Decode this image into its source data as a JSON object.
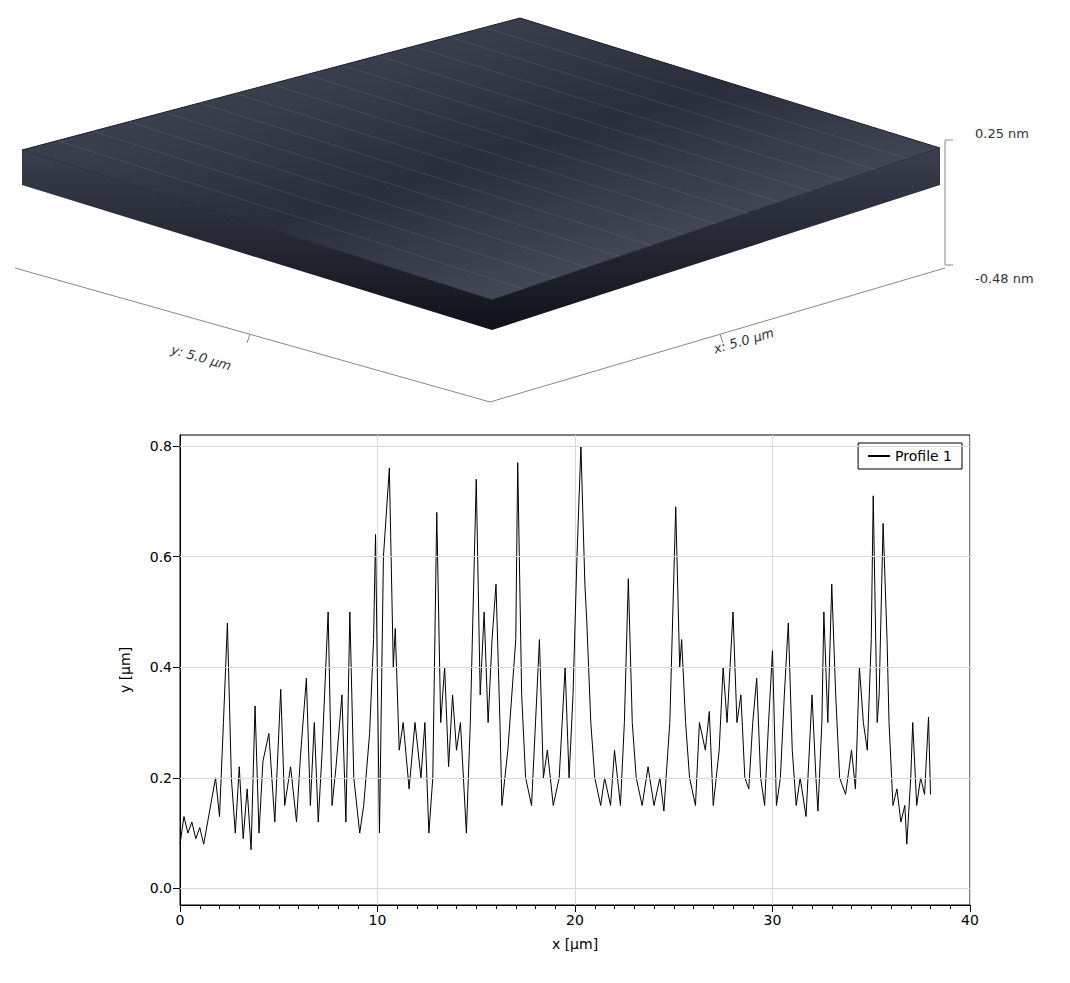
{
  "chart_data": [
    {
      "type": "surface",
      "x_label": "x: 5.0 µm",
      "y_label": "y: 5.0 µm",
      "zlim": [
        -0.48,
        0.25
      ],
      "zticks": [
        {
          "value": 0.25,
          "label": "0.25 nm"
        },
        {
          "value": -0.48,
          "label": "-0.48 nm"
        }
      ]
    },
    {
      "type": "line",
      "x_label": "x [µm]",
      "y_label": "y [µm]",
      "xlim": [
        0,
        40
      ],
      "xticks": [
        0,
        10,
        20,
        30,
        40
      ],
      "ylim": [
        -0.03,
        0.82
      ],
      "yticks": [
        {
          "value": 0,
          "label": "0.0"
        },
        0.2,
        0.4,
        0.6,
        0.8
      ],
      "grid": true,
      "legend": "top-right",
      "x": [
        0,
        0.2,
        0.4,
        0.6,
        0.8,
        1.0,
        1.2,
        1.4,
        1.6,
        1.8,
        2.0,
        2.2,
        2.4,
        2.6,
        2.8,
        3.0,
        3.2,
        3.4,
        3.6,
        3.8,
        4.0,
        4.2,
        4.5,
        4.8,
        5.1,
        5.3,
        5.6,
        5.9,
        6.1,
        6.4,
        6.6,
        6.8,
        7.0,
        7.2,
        7.5,
        7.7,
        7.9,
        8.2,
        8.4,
        8.6,
        8.8,
        9.1,
        9.3,
        9.6,
        9.8,
        9.9,
        10.1,
        10.3,
        10.6,
        10.8,
        10.9,
        11.1,
        11.3,
        11.6,
        11.9,
        12.2,
        12.4,
        12.6,
        12.8,
        13.0,
        13.2,
        13.4,
        13.6,
        13.8,
        14.0,
        14.2,
        14.5,
        14.7,
        15.0,
        15.2,
        15.4,
        15.6,
        15.8,
        16.0,
        16.2,
        16.3,
        16.6,
        16.8,
        17.0,
        17.1,
        17.3,
        17.5,
        17.8,
        18.0,
        18.2,
        18.4,
        18.6,
        18.9,
        19.2,
        19.5,
        19.7,
        19.9,
        20.1,
        20.3,
        20.5,
        20.6,
        20.8,
        21.0,
        21.3,
        21.5,
        21.8,
        22.0,
        22.3,
        22.5,
        22.7,
        22.9,
        23.1,
        23.4,
        23.7,
        24.0,
        24.3,
        24.5,
        24.8,
        25.1,
        25.3,
        25.4,
        25.6,
        25.8,
        26.1,
        26.3,
        26.6,
        26.8,
        27.0,
        27.3,
        27.5,
        27.7,
        28.0,
        28.2,
        28.4,
        28.6,
        28.8,
        29.0,
        29.2,
        29.4,
        29.6,
        29.8,
        30.0,
        30.2,
        30.4,
        30.6,
        30.8,
        31.0,
        31.2,
        31.4,
        31.7,
        32.0,
        32.2,
        32.3,
        32.5,
        32.6,
        32.8,
        33.0,
        33.2,
        33.4,
        33.7,
        34.0,
        34.2,
        34.4,
        34.6,
        34.8,
        35.0,
        35.1,
        35.3,
        35.4,
        35.6,
        35.8,
        35.9,
        36.1,
        36.3,
        36.5,
        36.7,
        36.8,
        37.0,
        37.1,
        37.3,
        37.5,
        37.7,
        37.9,
        38.0
      ],
      "series": [
        {
          "name": "Profile 1",
          "color": "#000000",
          "values": [
            0.08,
            0.13,
            0.1,
            0.12,
            0.09,
            0.11,
            0.08,
            0.12,
            0.16,
            0.2,
            0.13,
            0.3,
            0.48,
            0.2,
            0.1,
            0.22,
            0.09,
            0.18,
            0.07,
            0.33,
            0.1,
            0.23,
            0.28,
            0.12,
            0.36,
            0.15,
            0.22,
            0.12,
            0.24,
            0.38,
            0.15,
            0.3,
            0.12,
            0.25,
            0.5,
            0.15,
            0.22,
            0.35,
            0.12,
            0.5,
            0.2,
            0.1,
            0.15,
            0.28,
            0.45,
            0.64,
            0.1,
            0.6,
            0.76,
            0.4,
            0.47,
            0.25,
            0.3,
            0.18,
            0.3,
            0.2,
            0.3,
            0.1,
            0.2,
            0.68,
            0.3,
            0.4,
            0.22,
            0.35,
            0.25,
            0.3,
            0.1,
            0.3,
            0.74,
            0.35,
            0.5,
            0.3,
            0.45,
            0.55,
            0.3,
            0.15,
            0.25,
            0.35,
            0.45,
            0.77,
            0.35,
            0.2,
            0.15,
            0.3,
            0.45,
            0.2,
            0.25,
            0.15,
            0.2,
            0.4,
            0.2,
            0.35,
            0.6,
            0.8,
            0.55,
            0.48,
            0.3,
            0.2,
            0.15,
            0.2,
            0.15,
            0.25,
            0.15,
            0.3,
            0.56,
            0.3,
            0.2,
            0.15,
            0.22,
            0.15,
            0.2,
            0.14,
            0.3,
            0.69,
            0.4,
            0.45,
            0.3,
            0.2,
            0.15,
            0.3,
            0.25,
            0.32,
            0.15,
            0.25,
            0.4,
            0.3,
            0.5,
            0.3,
            0.35,
            0.2,
            0.18,
            0.3,
            0.38,
            0.2,
            0.15,
            0.3,
            0.43,
            0.15,
            0.2,
            0.35,
            0.48,
            0.25,
            0.15,
            0.2,
            0.13,
            0.35,
            0.2,
            0.14,
            0.3,
            0.5,
            0.3,
            0.55,
            0.35,
            0.2,
            0.17,
            0.25,
            0.18,
            0.4,
            0.3,
            0.25,
            0.45,
            0.71,
            0.3,
            0.35,
            0.66,
            0.45,
            0.3,
            0.15,
            0.18,
            0.12,
            0.15,
            0.08,
            0.2,
            0.3,
            0.15,
            0.2,
            0.17,
            0.31,
            0.17
          ]
        }
      ]
    }
  ]
}
